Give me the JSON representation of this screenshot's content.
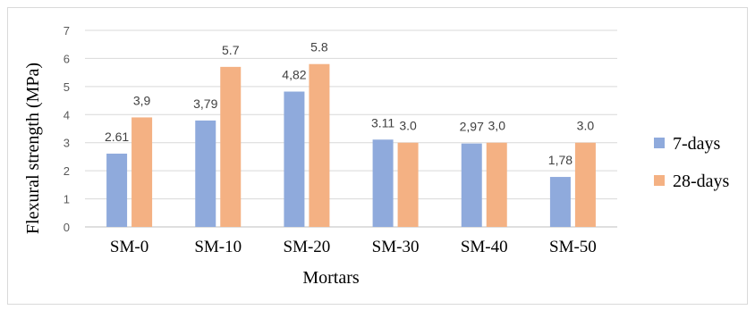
{
  "chart_data": {
    "type": "bar",
    "title": "",
    "xlabel": "Mortars",
    "ylabel": "Flexural strength (MPa)",
    "ylim": [
      0,
      7
    ],
    "yticks": [
      0,
      1,
      2,
      3,
      4,
      5,
      6,
      7
    ],
    "grid": true,
    "legend_position": "right",
    "categories": [
      "SM-0",
      "SM-10",
      "SM-20",
      "SM-30",
      "SM-40",
      "SM-50"
    ],
    "series": [
      {
        "name": "7-days",
        "color": "#8faadc",
        "values": [
          2.61,
          3.79,
          4.82,
          3.11,
          2.97,
          1.78
        ],
        "labels": [
          "2.61",
          "3,79",
          "4,82",
          "3.11",
          "2,97",
          "1,78"
        ]
      },
      {
        "name": "28-days",
        "color": "#f4b183",
        "values": [
          3.9,
          5.7,
          5.8,
          3.0,
          3.0,
          3.0
        ],
        "labels": [
          "3,9",
          "5.7",
          "5.8",
          "3.0",
          "3,0",
          "3.0"
        ]
      }
    ]
  }
}
